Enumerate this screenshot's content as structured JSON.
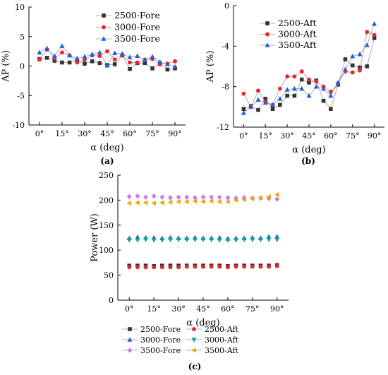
{
  "chart_data": [
    {
      "type": "line",
      "panel_label": "(a)",
      "xlabel": "α  (deg)",
      "ylabel": "AP  (%)",
      "xlim": [
        -7,
        97
      ],
      "ylim": [
        -10,
        10
      ],
      "xticks": [
        0,
        15,
        30,
        45,
        60,
        75,
        90
      ],
      "xtick_labels": [
        "0°",
        "15°",
        "30°",
        "45°",
        "60°",
        "75°",
        "90°"
      ],
      "yticks": [
        -10,
        -5,
        0,
        5,
        10
      ],
      "ytick_labels": [
        "-10",
        "-5",
        "0",
        "5",
        "10"
      ],
      "legend_position": "top-right",
      "x": [
        0,
        5,
        10,
        15,
        20,
        25,
        30,
        35,
        40,
        45,
        50,
        55,
        60,
        65,
        70,
        75,
        80,
        85,
        90
      ],
      "series": [
        {
          "name": "2500-Fore",
          "color": "#333333",
          "marker": "square",
          "values": [
            1.2,
            1.4,
            0.9,
            0.6,
            0.6,
            0.9,
            0.4,
            0.8,
            0.5,
            0.2,
            0.3,
            1.8,
            -0.5,
            0.5,
            0.5,
            -0.4,
            0.4,
            -0.6,
            -0.4
          ]
        },
        {
          "name": "3000-Fore",
          "color": "#e8262b",
          "marker": "circle",
          "values": [
            1.1,
            2.8,
            1.3,
            2.3,
            1.8,
            0.6,
            1.1,
            1.8,
            1.7,
            2.5,
            1.1,
            1.9,
            0.6,
            0.6,
            1.1,
            1.2,
            0.3,
            0.4,
            0.8
          ]
        },
        {
          "name": "3500-Fore",
          "color": "#1f5fe0",
          "marker": "triangle",
          "values": [
            2.3,
            3.0,
            1.7,
            3.4,
            1.8,
            1.3,
            1.6,
            2.0,
            2.3,
            0.1,
            2.2,
            2.1,
            1.5,
            1.7,
            1.0,
            1.6,
            0.7,
            0.3,
            -0.1
          ]
        }
      ]
    },
    {
      "type": "line",
      "panel_label": "(b)",
      "xlabel": "α  (deg)",
      "ylabel": "AP  (%)",
      "xlim": [
        -7,
        97
      ],
      "ylim": [
        -12,
        0
      ],
      "xticks": [
        0,
        15,
        30,
        45,
        60,
        75,
        90
      ],
      "xtick_labels": [
        "0°",
        "15°",
        "30°",
        "45°",
        "60°",
        "75°",
        "90°"
      ],
      "yticks": [
        -12,
        -8,
        -4,
        0
      ],
      "ytick_labels": [
        "-12",
        "-8",
        "-4",
        "0"
      ],
      "legend_position": "top-left",
      "x": [
        0,
        5,
        10,
        15,
        20,
        25,
        30,
        35,
        40,
        45,
        50,
        55,
        60,
        65,
        70,
        75,
        80,
        85,
        90
      ],
      "series": [
        {
          "name": "2500-Aft",
          "color": "#333333",
          "marker": "square",
          "values": [
            -10.2,
            -9.9,
            -10.3,
            -9.2,
            -10.2,
            -9.8,
            -8.9,
            -8.9,
            -7.3,
            -7.6,
            -7.4,
            -9.4,
            -10.2,
            -7.8,
            -5.3,
            -5.9,
            -6.1,
            -6.0,
            -3.2
          ]
        },
        {
          "name": "3000-Aft",
          "color": "#e8262b",
          "marker": "circle",
          "values": [
            -8.7,
            -10.0,
            -8.4,
            -9.5,
            -9.8,
            -8.2,
            -7.0,
            -7.0,
            -6.5,
            -7.3,
            -7.5,
            -8.0,
            -8.5,
            -7.7,
            -6.5,
            -6.6,
            -6.4,
            -2.6,
            -2.9
          ]
        },
        {
          "name": "3500-Aft",
          "color": "#1f5fe0",
          "marker": "triangle",
          "values": [
            -10.6,
            -10.0,
            -9.3,
            -9.6,
            -9.8,
            -9.2,
            -8.3,
            -8.2,
            -8.2,
            -8.9,
            -8.0,
            -8.2,
            -8.9,
            -7.6,
            -6.3,
            -5.0,
            -4.8,
            -3.9,
            -1.8
          ]
        }
      ]
    },
    {
      "type": "scatter",
      "panel_label": "(c)",
      "xlabel": "α  (deg)",
      "ylabel": "Power  (W)",
      "xlim": [
        -7,
        97
      ],
      "ylim": [
        0,
        250
      ],
      "xticks": [
        0,
        15,
        30,
        45,
        60,
        75,
        90
      ],
      "xtick_labels": [
        "0°",
        "15°",
        "30°",
        "45°",
        "60°",
        "75°",
        "90°"
      ],
      "yticks": [
        0,
        50,
        100,
        150,
        200,
        250
      ],
      "ytick_labels": [
        "0",
        "50",
        "100",
        "150",
        "200",
        "250"
      ],
      "legend_position": "bottom",
      "x": [
        0,
        5,
        10,
        15,
        20,
        25,
        30,
        35,
        40,
        45,
        50,
        55,
        60,
        65,
        70,
        75,
        80,
        85,
        90
      ],
      "series": [
        {
          "name": "2500-Fore",
          "color": "#333333",
          "marker": "square",
          "values": [
            69,
            69,
            69,
            68,
            69,
            69,
            69,
            69,
            69,
            69,
            69,
            69,
            68,
            69,
            69,
            69,
            69,
            69,
            70
          ]
        },
        {
          "name": "2500-Aft",
          "color": "#e8262b",
          "marker": "circle",
          "values": [
            66,
            66,
            66,
            66,
            66,
            66,
            66,
            67,
            67,
            67,
            67,
            67,
            66,
            67,
            67,
            67,
            67,
            67,
            68
          ]
        },
        {
          "name": "3000-Fore",
          "color": "#1f5fe0",
          "marker": "triangle",
          "values": [
            124,
            126,
            125,
            125,
            124,
            125,
            124,
            124,
            125,
            124,
            124,
            125,
            123,
            124,
            124,
            125,
            124,
            127,
            127
          ]
        },
        {
          "name": "3000-Aft",
          "color": "#17a589",
          "marker": "triangle-down",
          "values": [
            120,
            120,
            121,
            120,
            120,
            121,
            121,
            121,
            121,
            121,
            121,
            120,
            120,
            120,
            121,
            121,
            121,
            121,
            121
          ]
        },
        {
          "name": "3500-Fore",
          "color": "#c77dea",
          "marker": "diamond",
          "values": [
            207,
            208,
            206,
            208,
            206,
            205,
            206,
            206,
            205,
            206,
            206,
            206,
            205,
            204,
            205,
            204,
            204,
            203,
            202
          ]
        },
        {
          "name": "3500-Aft",
          "color": "#f4a300",
          "marker": "triangle-left",
          "values": [
            194,
            195,
            195,
            194,
            195,
            196,
            197,
            197,
            198,
            197,
            198,
            197,
            197,
            200,
            201,
            203,
            205,
            207,
            211
          ]
        }
      ]
    }
  ]
}
